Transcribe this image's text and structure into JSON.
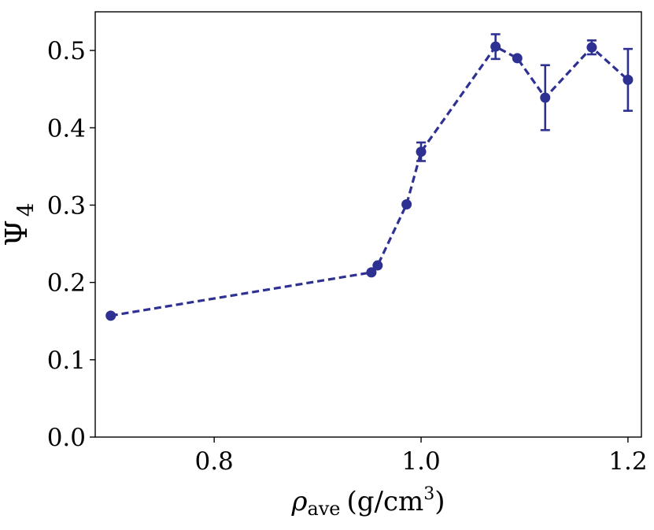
{
  "chart_data": {
    "type": "line",
    "title": "",
    "xlabel": {
      "symbol": "ρ",
      "subscript": "ave",
      "units": "(g/cm",
      "units_superscript": "3",
      "units_close": ")"
    },
    "ylabel": {
      "symbol": "Ψ",
      "subscript": "4"
    },
    "xlim": [
      0.685,
      1.213
    ],
    "ylim": [
      0.0,
      0.55
    ],
    "xticks": [
      0.8,
      1.0,
      1.2
    ],
    "xtick_labels": [
      "0.8",
      "1.0",
      "1.2"
    ],
    "yticks": [
      0.0,
      0.1,
      0.2,
      0.3,
      0.4,
      0.5
    ],
    "ytick_labels": [
      "0.0",
      "0.1",
      "0.2",
      "0.3",
      "0.4",
      "0.5"
    ],
    "grid": false,
    "series": [
      {
        "name": "Psi4",
        "color": "#2e3192",
        "line_style": "dashed",
        "marker": "circle",
        "x": [
          0.7,
          0.952,
          0.958,
          0.986,
          1.0,
          1.072,
          1.093,
          1.12,
          1.165,
          1.2
        ],
        "y": [
          0.157,
          0.213,
          0.222,
          0.301,
          0.369,
          0.505,
          0.49,
          0.439,
          0.504,
          0.462
        ],
        "err": [
          0.0,
          0.0,
          0.0,
          0.0,
          0.012,
          0.016,
          0.0,
          0.042,
          0.009,
          0.04
        ]
      }
    ]
  }
}
